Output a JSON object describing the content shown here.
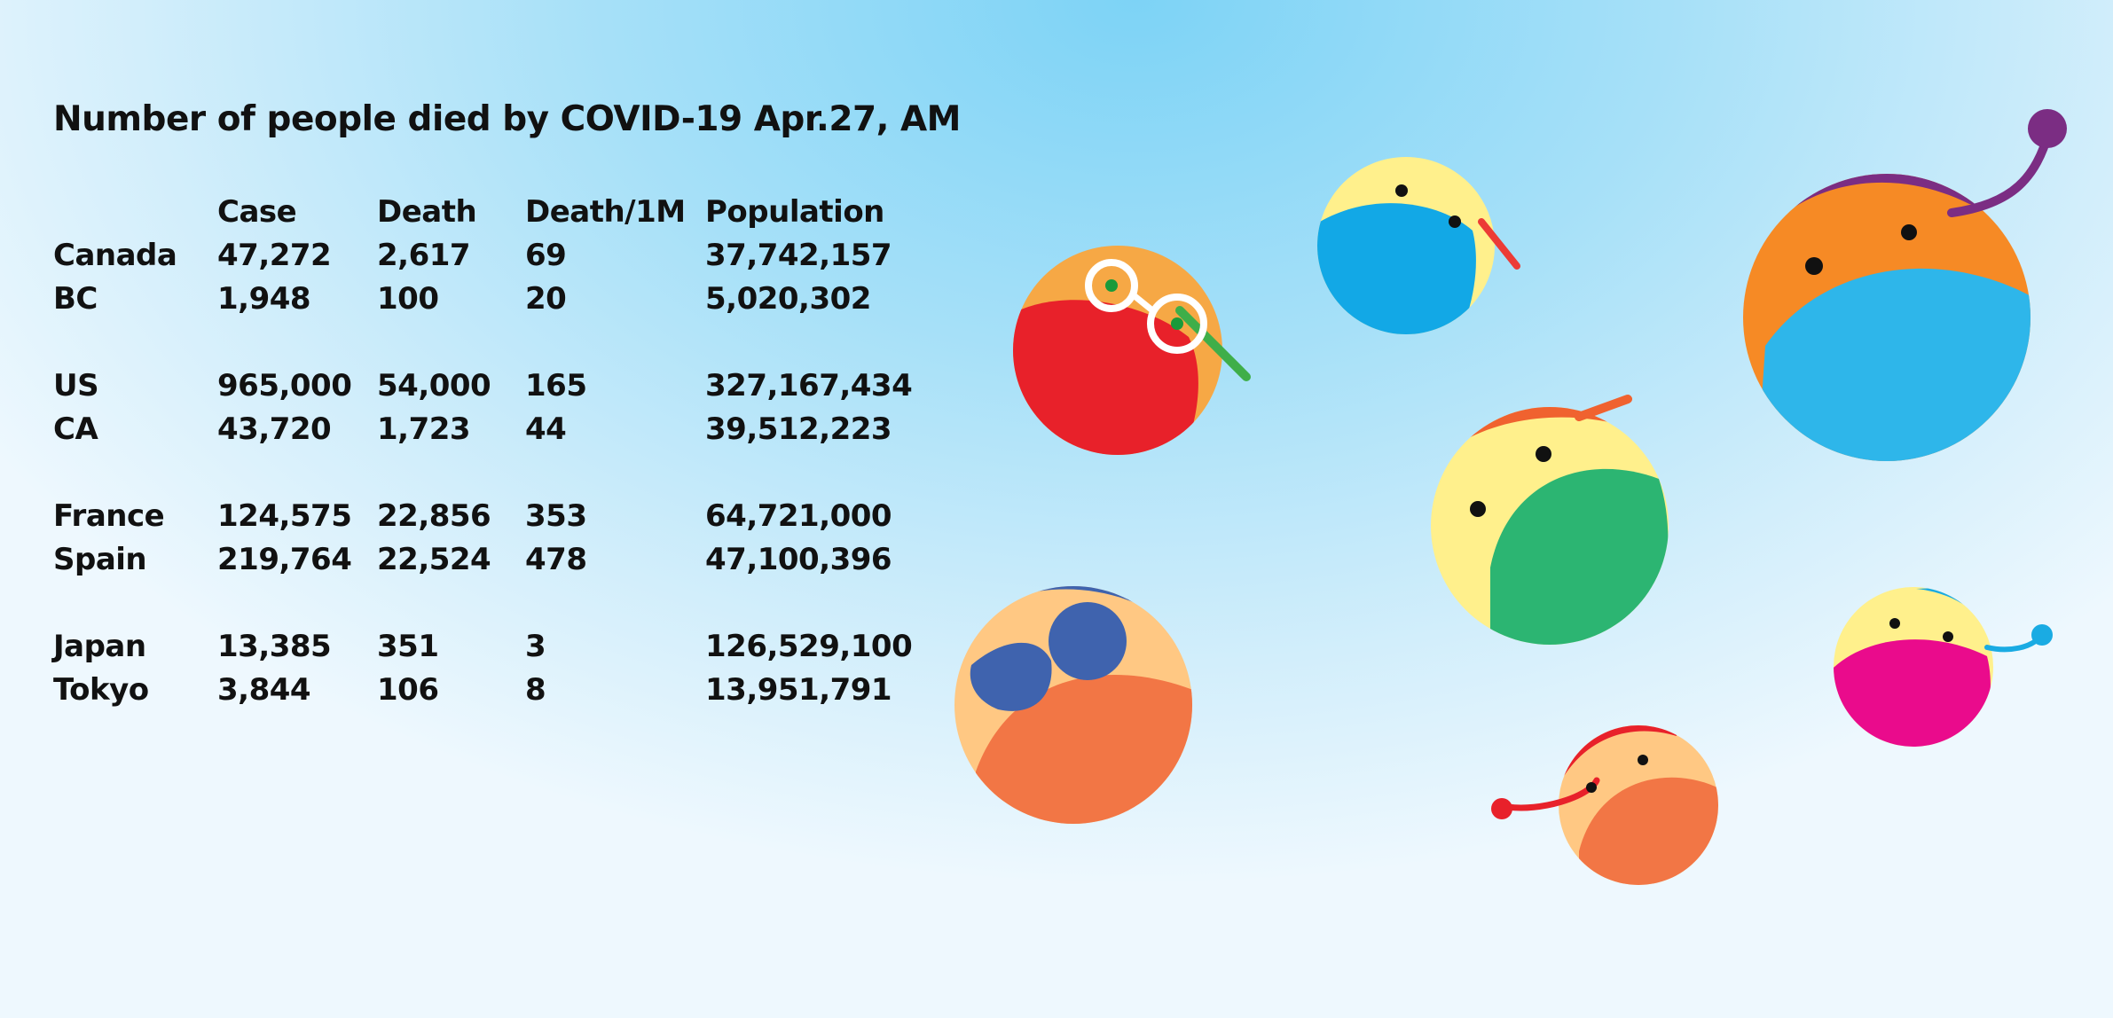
{
  "title": "Number of people died by COVID-19  Apr.27,  AM",
  "table": {
    "headers": [
      "",
      "Case",
      "Death",
      "Death/1M",
      "Population"
    ],
    "rows": [
      {
        "region": "Canada",
        "case": "47,272",
        "death": "2,617",
        "per_million": "69",
        "population": "37,742,157"
      },
      {
        "region": "BC",
        "case": "1,948",
        "death": "100",
        "per_million": "20",
        "population": "5,020,302"
      },
      {
        "region": "US",
        "case": "965,000",
        "death": "54,000",
        "per_million": "165",
        "population": "327,167,434"
      },
      {
        "region": "CA",
        "case": "43,720",
        "death": "1,723",
        "per_million": "44",
        "population": "39,512,223"
      },
      {
        "region": "France",
        "case": "124,575",
        "death": "22,856",
        "per_million": "353",
        "population": "64,721,000"
      },
      {
        "region": "Spain",
        "case": "219,764",
        "death": "22,524",
        "per_million": "478",
        "population": "47,100,396"
      },
      {
        "region": "Japan",
        "case": "13,385",
        "death": "351",
        "per_million": "3",
        "population": "126,529,100"
      },
      {
        "region": "Tokyo",
        "case": "3,844",
        "death": "106",
        "per_million": "8",
        "population": "13,951,791"
      }
    ]
  },
  "colors": {
    "text": "#111111",
    "background_center": "#7dd3f6",
    "background_edge": "#eef8fe"
  },
  "illustrations": [
    "masked-face-glasses-icon",
    "masked-face-cap-blue-icon",
    "masked-face-purple-hair-icon",
    "masked-face-green-mask-icon",
    "masked-face-sunglasses-icon",
    "masked-face-pink-mask-icon",
    "masked-face-orange-mask-icon"
  ]
}
